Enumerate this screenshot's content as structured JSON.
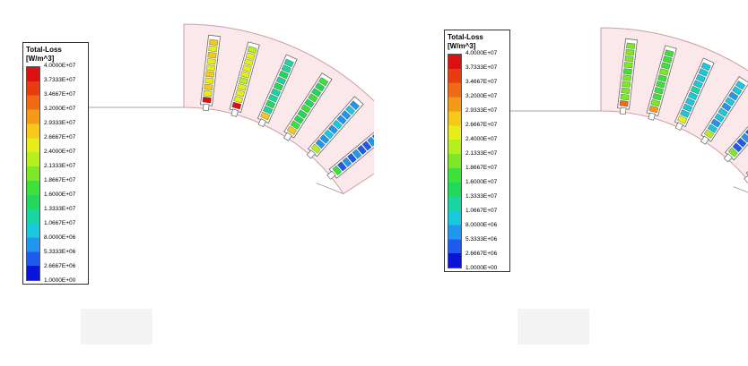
{
  "panels": [
    {
      "id": "left",
      "legend": {
        "title": "Total-Loss",
        "unit": "[W/m^3]",
        "ticks": [
          "4.0000E+07",
          "3.7333E+07",
          "3.4667E+07",
          "3.2000E+07",
          "2.9333E+07",
          "2.6667E+07",
          "2.4000E+07",
          "2.1333E+07",
          "1.8667E+07",
          "1.6000E+07",
          "1.3333E+07",
          "1.0667E+07",
          "8.0000E+06",
          "5.3333E+06",
          "2.6667E+06",
          "1.0000E+00"
        ]
      },
      "slot_levels": [
        0.08,
        0.15,
        0.35,
        0.28,
        0.58,
        0.62
      ]
    },
    {
      "id": "right",
      "legend": {
        "title": "Total-Loss",
        "unit": "[W/m^3]",
        "ticks": [
          "4.0000E+07",
          "3.7333E+07",
          "3.4667E+07",
          "3.2000E+07",
          "2.9333E+07",
          "2.6667E+07",
          "2.4000E+07",
          "2.1333E+07",
          "1.8667E+07",
          "1.6000E+07",
          "1.3333E+07",
          "1.0667E+07",
          "8.0000E+06",
          "5.3333E+06",
          "2.6667E+06",
          "1.0000E+00"
        ]
      },
      "slot_levels": [
        0.05,
        0.08,
        0.18,
        0.2,
        0.4,
        0.45
      ]
    }
  ],
  "colors": {
    "stator_fill": "#fbe8ea",
    "stator_stroke": "#c9a0a6",
    "colormap": [
      "#0a14d8",
      "#1e5af0",
      "#2196f0",
      "#19c8dc",
      "#18d6a0",
      "#22d85a",
      "#3ee03a",
      "#7ee828",
      "#b6ee1e",
      "#e6ee1a",
      "#f5c81a",
      "#f59a18",
      "#f06a14",
      "#e83c10",
      "#dc1010"
    ]
  }
}
